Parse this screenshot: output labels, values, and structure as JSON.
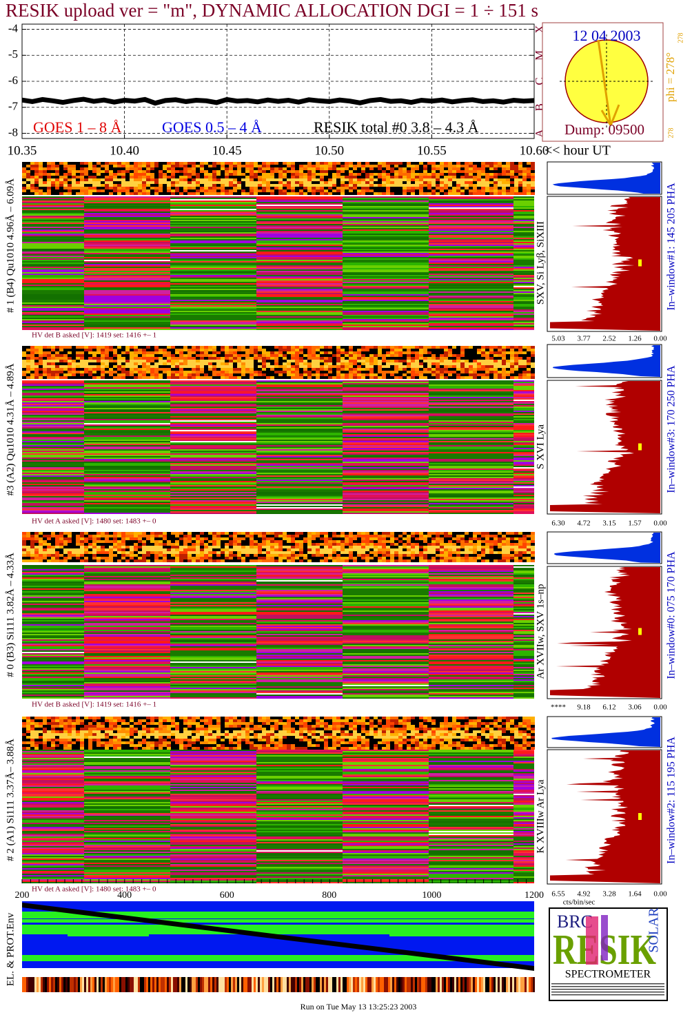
{
  "header": {
    "title": "RESIK upload ver = \"m\", DYNAMIC ALLOCATION  DGI =   1 ÷ 151 s"
  },
  "chart_data": [
    {
      "type": "line",
      "x_label": "<< hour UT",
      "x": [
        35,
        35.5,
        36,
        36.5,
        37,
        37.5,
        38,
        38.5,
        39,
        39.5,
        40,
        40.5,
        41,
        41.5,
        42,
        42.5,
        43,
        43.5,
        44,
        44.5,
        45,
        45.5,
        46,
        46.5,
        47,
        47.5,
        48,
        48.5,
        49,
        49.5,
        50,
        50.5,
        51,
        51.5,
        52,
        52.5,
        53,
        53.5,
        54,
        54.5,
        55,
        55.5,
        56,
        56.5,
        57,
        57.5,
        58,
        58.5,
        59,
        59.5,
        60
      ],
      "xlim": [
        35,
        60
      ],
      "xticks": [
        {
          "value": 35,
          "label": "10.35"
        },
        {
          "value": 40,
          "label": "10.40"
        },
        {
          "value": 45,
          "label": "10.45"
        },
        {
          "value": 50,
          "label": "10.50"
        },
        {
          "value": 55,
          "label": "10.55"
        },
        {
          "value": 60,
          "label": "10.60"
        }
      ],
      "ylim": [
        -8.2,
        -3.8
      ],
      "yticks": [
        -4,
        -5,
        -6,
        -7,
        -8
      ],
      "y2lim": [
        -8.2,
        -3.8
      ],
      "y2ticks": [
        {
          "value": -4,
          "label": "X"
        },
        {
          "value": -5,
          "label": "M"
        },
        {
          "value": -6,
          "label": "C"
        },
        {
          "value": -7,
          "label": "B"
        },
        {
          "value": -8,
          "label": "A"
        }
      ],
      "grid": true,
      "series": [
        {
          "name": "GOES 1 – 8 Å",
          "color": "#e00000",
          "values": [
            null,
            null,
            null,
            null,
            null,
            null,
            null,
            null,
            null,
            null,
            null,
            null,
            null,
            null,
            null,
            null,
            null,
            null,
            null,
            null,
            null,
            null,
            null,
            null,
            null,
            null,
            null,
            null,
            null,
            null,
            null,
            null,
            null,
            null,
            null,
            null,
            null,
            null,
            null,
            null,
            null,
            null,
            null,
            null,
            null,
            null,
            null,
            null,
            null,
            null,
            null
          ]
        },
        {
          "name": "GOES 0.5 – 4 Å",
          "color": "#0000e0",
          "values": [
            null,
            null,
            null,
            null,
            null,
            null,
            null,
            null,
            null,
            null,
            null,
            null,
            null,
            null,
            null,
            null,
            null,
            null,
            null,
            null,
            null,
            null,
            null,
            null,
            null,
            null,
            null,
            null,
            null,
            null,
            null,
            null,
            null,
            null,
            null,
            null,
            null,
            null,
            null,
            null,
            null,
            null,
            null,
            null,
            null,
            null,
            null,
            null,
            null,
            null,
            null
          ]
        },
        {
          "name": "RESIK total #0  3.8 – 4.3 Å",
          "color": "#000000",
          "values": [
            -6.72,
            -6.78,
            -6.7,
            -6.75,
            -6.81,
            -6.74,
            -6.69,
            -6.77,
            -6.72,
            -6.8,
            -6.73,
            -6.76,
            -6.7,
            -6.84,
            -6.74,
            -6.71,
            -6.78,
            -6.73,
            -6.75,
            -6.82,
            -6.7,
            -6.76,
            -6.74,
            -6.79,
            -6.72,
            -6.77,
            -6.73,
            -6.8,
            -6.71,
            -6.75,
            -6.78,
            -6.72,
            -6.76,
            -6.83,
            -6.74,
            -6.7,
            -6.77,
            -6.75,
            -6.81,
            -6.73,
            -6.76,
            -6.72,
            -6.79,
            -6.74,
            -6.71,
            -6.78,
            -6.75,
            -6.8,
            -6.73,
            -6.76,
            -6.74
          ]
        }
      ]
    }
  ],
  "solar_disk": {
    "date": "12 04 2003",
    "dump": "Dump: 09500",
    "phi": "phi = 278°",
    "phi_sup": "278",
    "corner": "278"
  },
  "panels": [
    {
      "label": "# 1 (B4) Qu1010 4.96Å – 6.09Å",
      "hv": "HV det B asked [V]:  1419 set:  1416 +–   1",
      "lines": "SXV, Si Lyβ, SiXIII",
      "window": "In–window#1:  145 205 PHA",
      "hist_ticks": [
        "5.03",
        "3.77",
        "2.52",
        "1.26",
        "0.00"
      ]
    },
    {
      "label": "#3 (A2) Qu1010  4.31Å – 4.89Å",
      "hv": "HV det A asked [V]:  1480 set:  1483 +–   0",
      "lines": "S XVI Lya",
      "window": "In–window#3:  170 250 PHA",
      "hist_ticks": [
        "6.30",
        "4.72",
        "3.15",
        "1.57",
        "0.00"
      ]
    },
    {
      "label": "# 0 (B3) Si111  3.82Å – 4.33Å",
      "hv": "HV det B asked [V]:  1419 set:  1416 +–   1",
      "lines": "Ar XVIIw,  SXV 1s–np",
      "window": "In–window#0:  075 170 PHA",
      "hist_ticks": [
        "****",
        "9.18",
        "6.12",
        "3.06",
        "0.00"
      ]
    },
    {
      "label": "# 2 (A1) Si111  3.37Å– 3.88Å",
      "hv": "HV det A asked [V]:  1480 set:  1483 +–   0",
      "lines": "K XVIIIw  Ar Lya",
      "window": "In–window#2:  115 195 PHA",
      "hist_ticks": [
        "6.55",
        "4.92",
        "3.28",
        "1.64",
        "0.00"
      ],
      "hist_unit": "cts/bin/sec"
    }
  ],
  "bottom": {
    "ticks": [
      "200",
      "400",
      "600",
      "800",
      "1000",
      "1200"
    ],
    "label": "EL. & PROT.Env"
  },
  "logo": {
    "top": "BRC",
    "main": "RESIK",
    "side": "SOLAR",
    "bottom": "SPECTROMETER"
  },
  "footer": "Run on Tue May 13 13:25:23 2003"
}
